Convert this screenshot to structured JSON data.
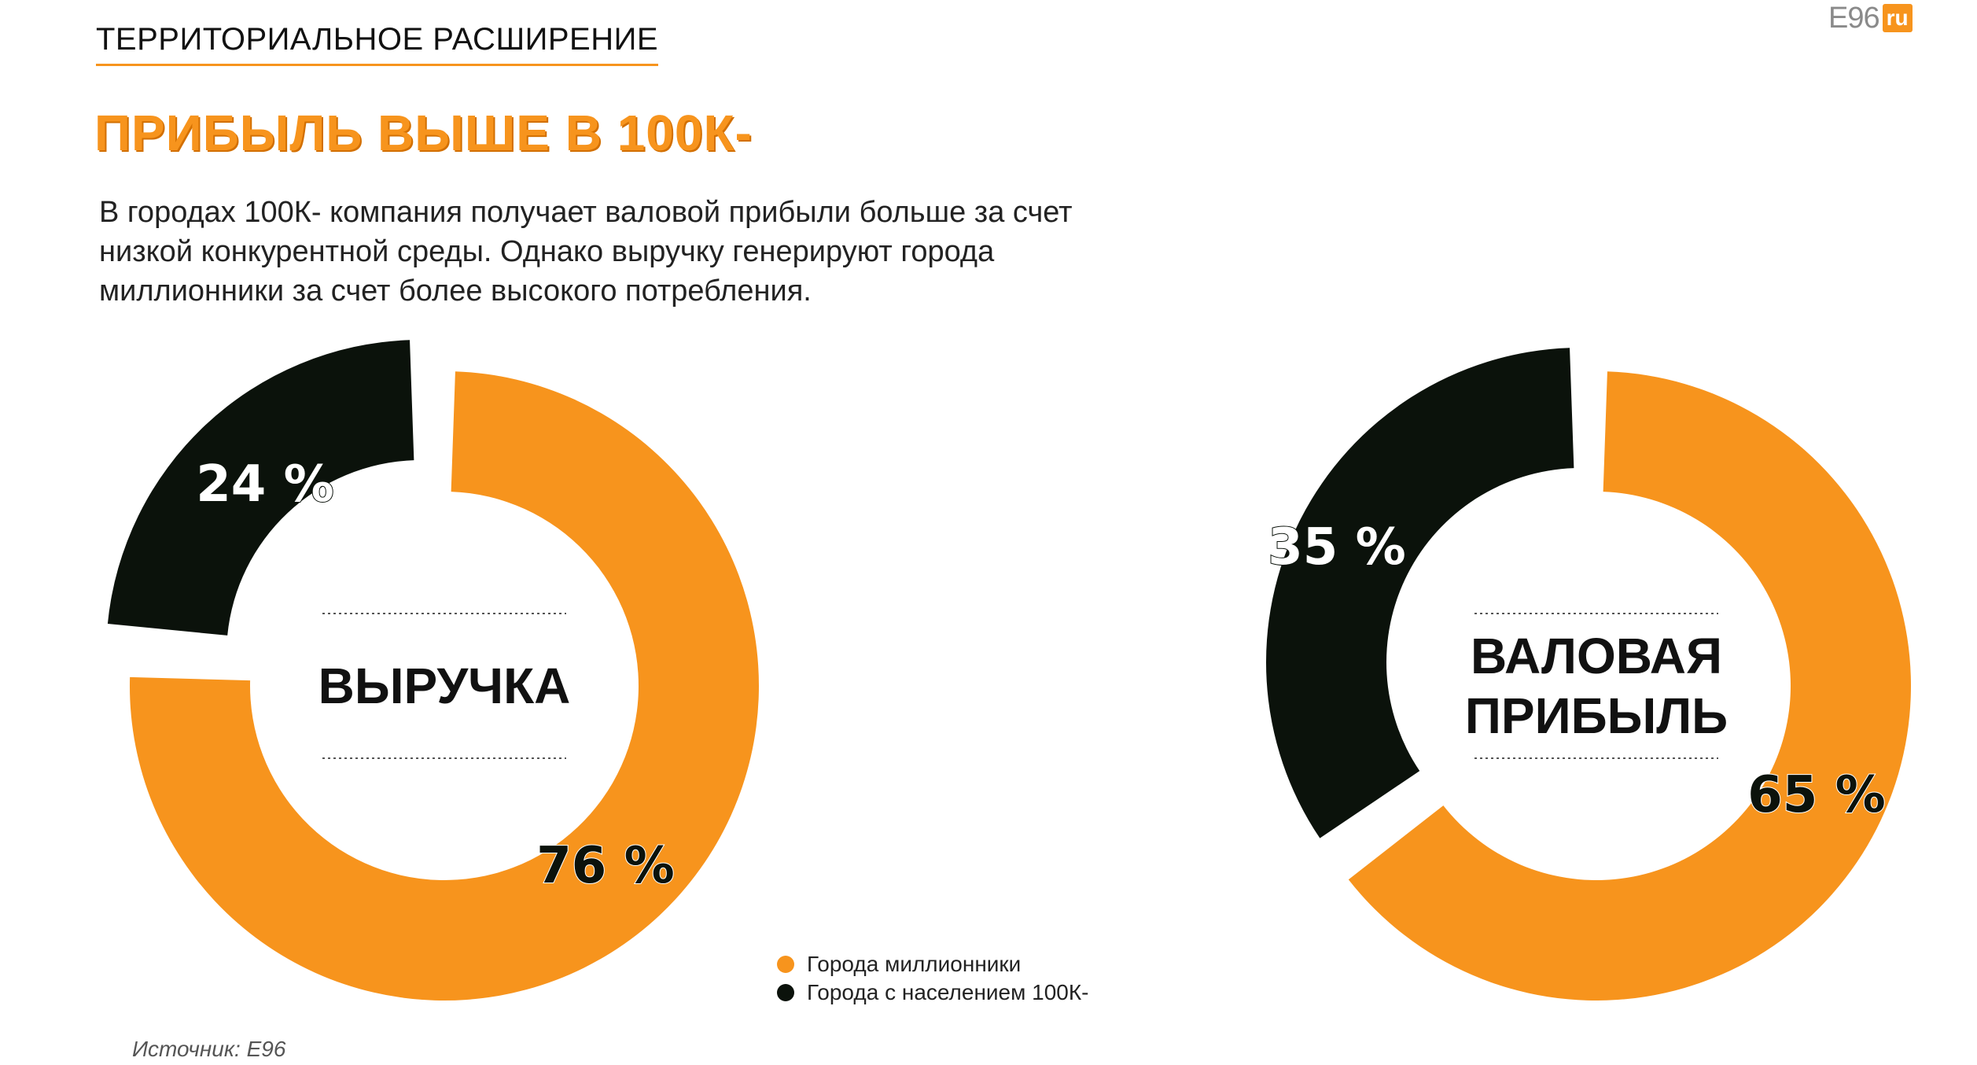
{
  "section_label": "ТЕРРИТОРИАЛЬНОЕ РАСШИРЕНИЕ",
  "logo": {
    "text": "E96",
    "box": "ru"
  },
  "headline": "ПРИБЫЛЬ ВЫШЕ В 100К-",
  "intro": "В городах 100К- компания получает валовой прибыли больше за счет низкой конкурентной среды. Однако выручку генерируют города миллионники за счет более высокого потребления.",
  "colors": {
    "orange": "#f7941d",
    "dark": "#0b120b",
    "white": "#ffffff"
  },
  "chart_data": [
    {
      "type": "pie",
      "center_label": [
        "ВЫРУЧКА"
      ],
      "categories": [
        "Города миллионники",
        "Города с населением 100К-"
      ],
      "values": [
        76,
        24
      ],
      "labels": [
        "76 %",
        "24 %"
      ]
    },
    {
      "type": "pie",
      "center_label": [
        "ВАЛОВАЯ",
        "ПРИБЫЛЬ"
      ],
      "categories": [
        "Города миллионники",
        "Города с населением 100К-"
      ],
      "values": [
        65,
        35
      ],
      "labels": [
        "65 %",
        "35 %"
      ]
    }
  ],
  "legend": [
    {
      "label": "Города миллионники",
      "color": "#f7941d"
    },
    {
      "label": "Города с населением 100К-",
      "color": "#0b120b"
    }
  ],
  "source": "Источник: E96"
}
